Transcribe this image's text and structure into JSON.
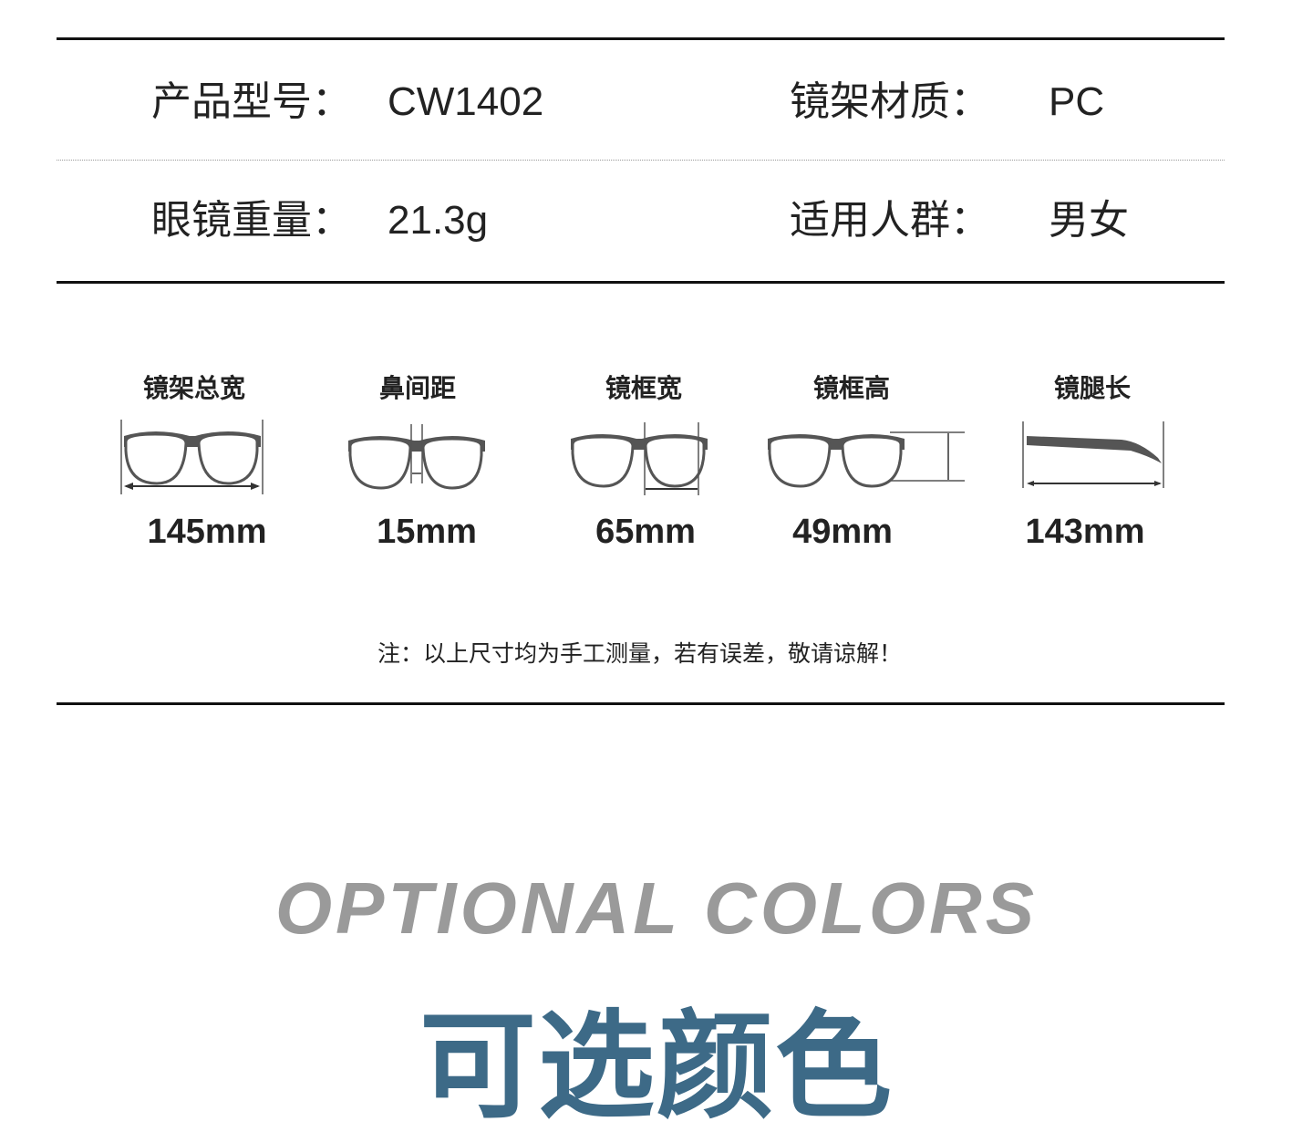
{
  "specs": [
    {
      "label": "产品型号：",
      "value": "CW1402"
    },
    {
      "label": "镜架材质：",
      "value": "PC"
    },
    {
      "label": "眼镜重量：",
      "value": "21.3g"
    },
    {
      "label": "适用人群：",
      "value": "男女"
    }
  ],
  "dimensions": [
    {
      "label": "镜架总宽",
      "value": "145mm",
      "icon": "glasses-total-width-icon"
    },
    {
      "label": "鼻间距",
      "value": "15mm",
      "icon": "glasses-bridge-width-icon"
    },
    {
      "label": "镜框宽",
      "value": "65mm",
      "icon": "glasses-lens-width-icon"
    },
    {
      "label": "镜框高",
      "value": "49mm",
      "icon": "glasses-lens-height-icon"
    },
    {
      "label": "镜腿长",
      "value": "143mm",
      "icon": "glasses-temple-length-icon"
    }
  ],
  "note": "注：以上尺寸均为手工测量，若有误差，敬请谅解！",
  "colors_section": {
    "title_en": "OPTIONAL COLORS",
    "title_cn": "可选颜色"
  },
  "colors": {
    "accent": "#3d6a87",
    "title_grey": "#9a9a9a"
  }
}
